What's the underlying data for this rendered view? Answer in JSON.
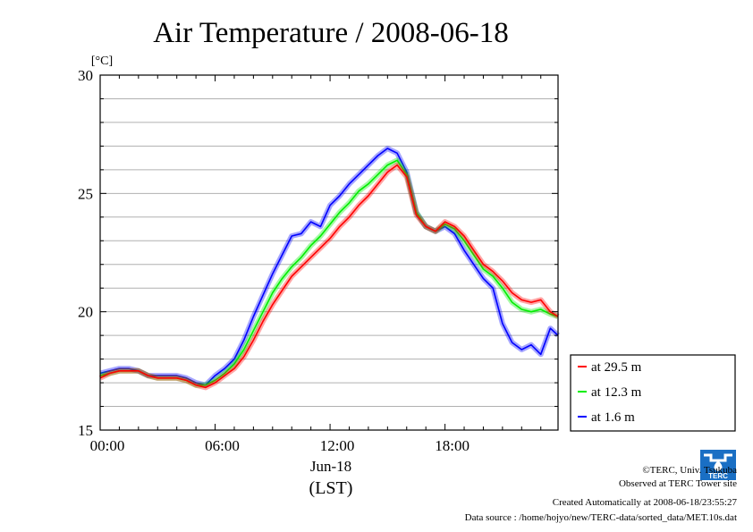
{
  "chart_data": {
    "type": "line",
    "title": "Air Temperature / 2008-06-18",
    "ylabel": "[°C]",
    "xlabel": "(LST)",
    "date_label": "Jun-18",
    "ylim": [
      15,
      30
    ],
    "yticks": [
      "15",
      "20",
      "25",
      "30"
    ],
    "xlim": [
      0,
      23.9
    ],
    "xticks": [
      {
        "v": 0,
        "label": "00:00"
      },
      {
        "v": 6,
        "label": "06:00"
      },
      {
        "v": 12,
        "label": "12:00"
      },
      {
        "v": 18,
        "label": "18:00"
      }
    ],
    "grid": true,
    "legend_position": "right",
    "series": [
      {
        "name": "at 29.5 m",
        "color": "#ff0000",
        "x": [
          0,
          0.5,
          1,
          1.5,
          2,
          2.5,
          3,
          3.5,
          4,
          4.5,
          5,
          5.5,
          6,
          6.5,
          7,
          7.5,
          8,
          8.5,
          9,
          9.5,
          10,
          10.5,
          11,
          11.5,
          12,
          12.5,
          13,
          13.5,
          14,
          14.5,
          15,
          15.5,
          16,
          16.5,
          17,
          17.5,
          18,
          18.5,
          19,
          19.5,
          20,
          20.5,
          21,
          21.5,
          22,
          22.5,
          23,
          23.5,
          23.9
        ],
        "y": [
          17.2,
          17.4,
          17.5,
          17.5,
          17.5,
          17.3,
          17.2,
          17.2,
          17.2,
          17.1,
          16.9,
          16.8,
          17.0,
          17.3,
          17.6,
          18.1,
          18.8,
          19.6,
          20.3,
          20.9,
          21.5,
          21.9,
          22.3,
          22.7,
          23.1,
          23.6,
          24.0,
          24.5,
          24.9,
          25.4,
          25.9,
          26.2,
          25.7,
          24.1,
          23.6,
          23.4,
          23.8,
          23.6,
          23.2,
          22.6,
          22.0,
          21.7,
          21.3,
          20.8,
          20.5,
          20.4,
          20.5,
          20.0,
          19.8
        ]
      },
      {
        "name": "at 12.3 m",
        "color": "#00ee00",
        "x": [
          0,
          0.5,
          1,
          1.5,
          2,
          2.5,
          3,
          3.5,
          4,
          4.5,
          5,
          5.5,
          6,
          6.5,
          7,
          7.5,
          8,
          8.5,
          9,
          9.5,
          10,
          10.5,
          11,
          11.5,
          12,
          12.5,
          13,
          13.5,
          14,
          14.5,
          15,
          15.5,
          16,
          16.5,
          17,
          17.5,
          18,
          18.5,
          19,
          19.5,
          20,
          20.5,
          21,
          21.5,
          22,
          22.5,
          23,
          23.5,
          23.9
        ],
        "y": [
          17.3,
          17.4,
          17.5,
          17.5,
          17.5,
          17.3,
          17.2,
          17.2,
          17.2,
          17.1,
          16.9,
          16.9,
          17.1,
          17.4,
          17.8,
          18.4,
          19.2,
          20.0,
          20.8,
          21.4,
          21.9,
          22.3,
          22.8,
          23.2,
          23.7,
          24.2,
          24.6,
          25.1,
          25.4,
          25.8,
          26.2,
          26.4,
          25.8,
          24.2,
          23.6,
          23.4,
          23.7,
          23.5,
          23.0,
          22.4,
          21.8,
          21.5,
          21.0,
          20.4,
          20.1,
          20.0,
          20.1,
          19.9,
          19.8
        ]
      },
      {
        "name": "at 1.6 m",
        "color": "#0000ff",
        "x": [
          0,
          0.5,
          1,
          1.5,
          2,
          2.5,
          3,
          3.5,
          4,
          4.5,
          5,
          5.5,
          6,
          6.5,
          7,
          7.5,
          8,
          8.5,
          9,
          9.5,
          10,
          10.5,
          11,
          11.5,
          12,
          12.5,
          13,
          13.5,
          14,
          14.5,
          15,
          15.5,
          16,
          16.5,
          17,
          17.5,
          18,
          18.5,
          19,
          19.5,
          20,
          20.5,
          21,
          21.5,
          22,
          22.5,
          23,
          23.5,
          23.9
        ],
        "y": [
          17.4,
          17.5,
          17.6,
          17.6,
          17.5,
          17.3,
          17.3,
          17.3,
          17.3,
          17.2,
          17.0,
          16.9,
          17.3,
          17.6,
          18.0,
          18.8,
          19.8,
          20.7,
          21.6,
          22.4,
          23.2,
          23.3,
          23.8,
          23.6,
          24.5,
          24.9,
          25.4,
          25.8,
          26.2,
          26.6,
          26.9,
          26.7,
          25.9,
          24.2,
          23.6,
          23.4,
          23.6,
          23.3,
          22.6,
          22.0,
          21.4,
          21.0,
          19.5,
          18.7,
          18.4,
          18.6,
          18.2,
          19.3,
          19.0
        ]
      }
    ]
  },
  "footer": {
    "copyright": "©TERC, Univ. Tsukuba",
    "observed": "Observed at TERC Tower site",
    "created": "Created Automatically at 2008-06-18/23:55:27",
    "source": "Data source : /home/hojyo/new/TERC-data/sorted_data/MET.10s.dat"
  },
  "logo": {
    "name": "terc-logo-icon",
    "text": "TERC",
    "color": "#1a6fc4"
  }
}
